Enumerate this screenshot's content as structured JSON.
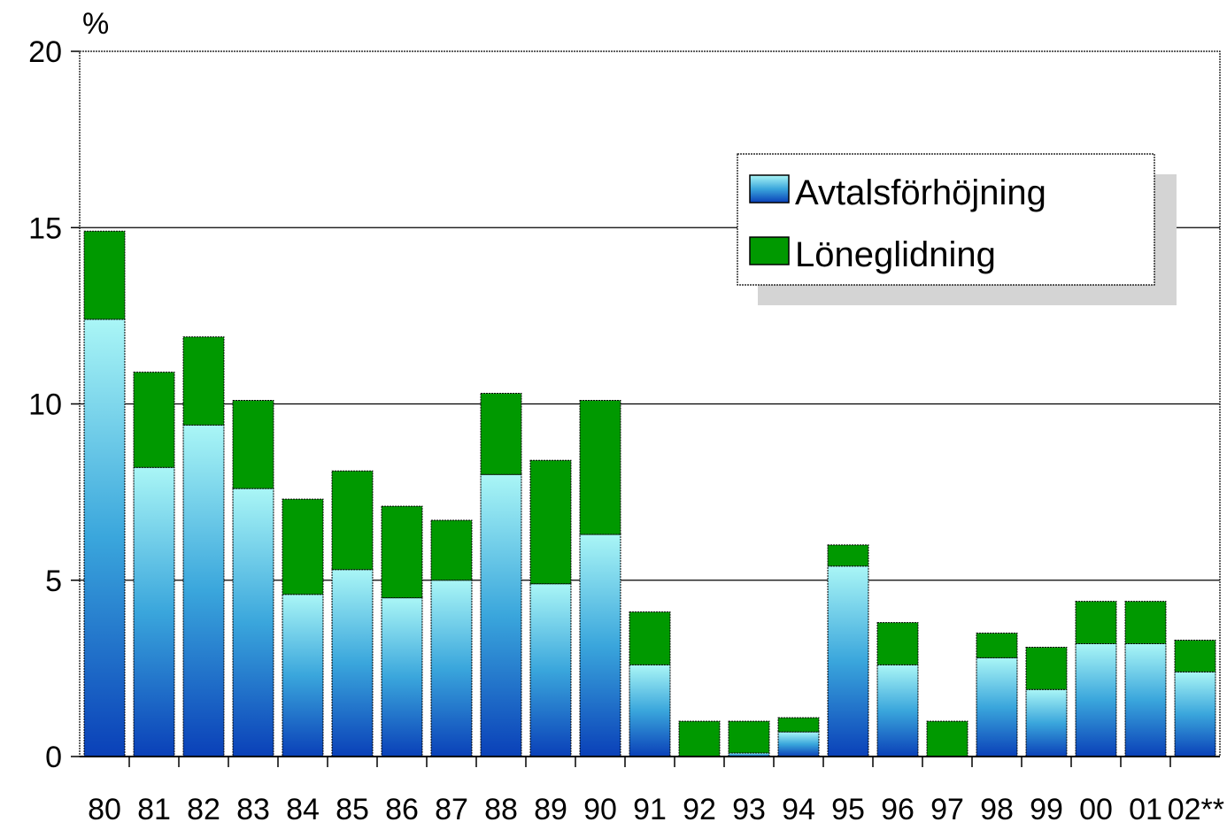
{
  "chart_data": {
    "type": "bar",
    "stacked": true,
    "unit_label": "%",
    "title": "",
    "xlabel": "",
    "ylabel": "",
    "categories": [
      "80",
      "81",
      "82",
      "83",
      "84",
      "85",
      "86",
      "87",
      "88",
      "89",
      "90",
      "91",
      "92",
      "93",
      "94",
      "95",
      "96",
      "97",
      "98",
      "99",
      "00",
      "01",
      "02**"
    ],
    "series": [
      {
        "name": "Avtalsförhöjning",
        "color": "#38b8e0",
        "values": [
          12.4,
          8.2,
          9.4,
          7.6,
          4.6,
          5.3,
          4.5,
          5.0,
          8.0,
          4.9,
          6.3,
          2.6,
          0.0,
          0.1,
          0.7,
          5.4,
          2.6,
          0.0,
          2.8,
          1.9,
          3.2,
          3.2,
          2.4
        ]
      },
      {
        "name": "Löneglidning",
        "color": "#009900",
        "values": [
          2.5,
          2.7,
          2.5,
          2.5,
          2.7,
          2.8,
          2.6,
          1.7,
          2.3,
          3.5,
          3.8,
          1.5,
          1.0,
          0.9,
          0.4,
          0.6,
          1.2,
          1.0,
          0.7,
          1.2,
          1.2,
          1.2,
          0.9
        ]
      }
    ],
    "ylim": [
      0,
      20
    ],
    "yticks": [
      0,
      5,
      10,
      15,
      20
    ],
    "grid": true,
    "legend_position": "top-right"
  }
}
